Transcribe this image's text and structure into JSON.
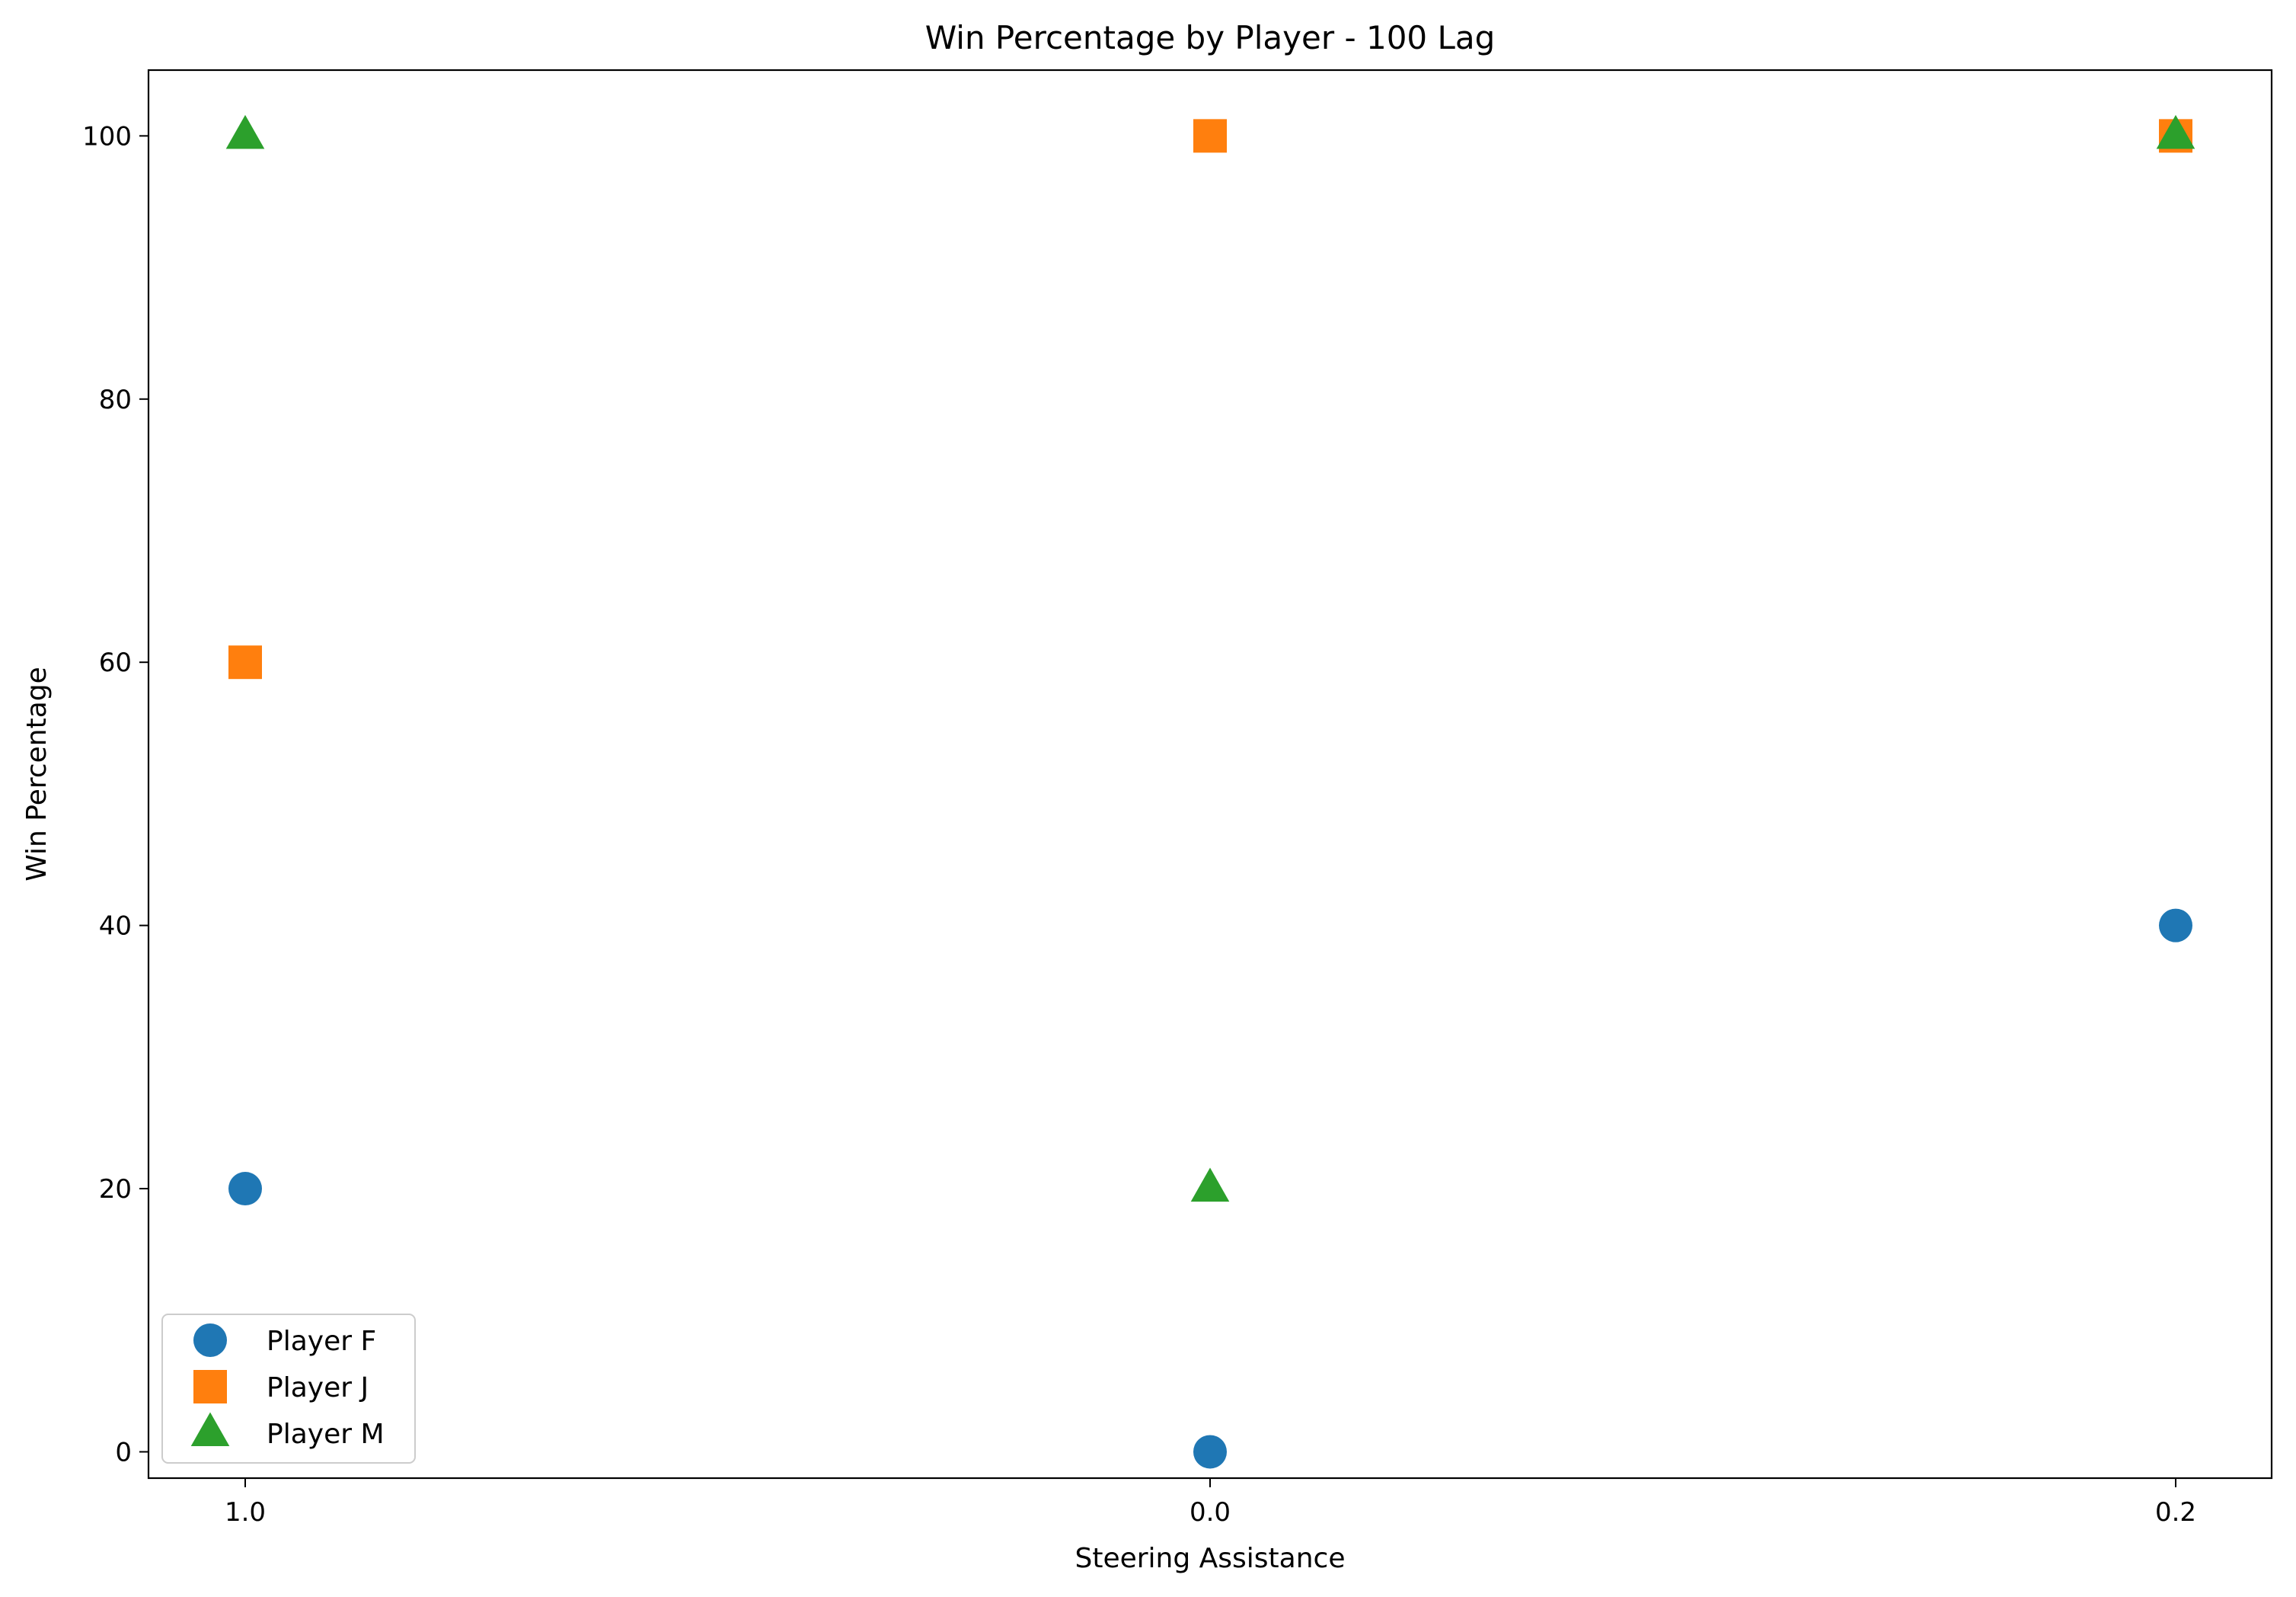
{
  "chart_data": {
    "type": "scatter",
    "title": "Win Percentage by Player - 100 Lag",
    "xlabel": "Steering Assistance",
    "ylabel": "Win Percentage",
    "categories": [
      "1.0",
      "0.0",
      "0.2"
    ],
    "ylim": [
      -2,
      105
    ],
    "yticks": [
      0,
      20,
      40,
      60,
      80,
      100
    ],
    "grid": false,
    "legend_position": "bottom-left",
    "series": [
      {
        "name": "Player F",
        "marker": "circle",
        "color": "#1f77b4",
        "values": [
          20,
          0,
          40
        ]
      },
      {
        "name": "Player J",
        "marker": "square",
        "color": "#ff7f0e",
        "values": [
          60,
          100,
          100
        ]
      },
      {
        "name": "Player M",
        "marker": "triangle",
        "color": "#2ca02c",
        "values": [
          100,
          20,
          100
        ]
      }
    ]
  }
}
